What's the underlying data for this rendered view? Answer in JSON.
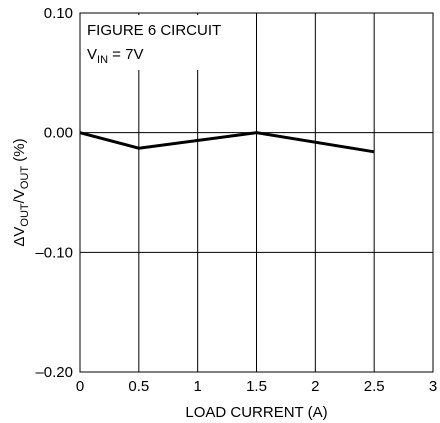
{
  "chart_data": {
    "type": "line",
    "title": "",
    "xlabel": "LOAD CURRENT (A)",
    "ylabel": {
      "prefix": "ΔV",
      "sub1": "OUT",
      "mid": "/V",
      "sub2": "OUT",
      "suffix": " (%)"
    },
    "xlim": [
      0,
      3
    ],
    "ylim": [
      -0.2,
      0.1
    ],
    "x_ticks": [
      0,
      0.5,
      1,
      1.5,
      2,
      2.5,
      3
    ],
    "x_tick_labels": [
      "0",
      "0.5",
      "1",
      "1.5",
      "2",
      "2.5",
      "3"
    ],
    "y_ticks": [
      0.1,
      0,
      -0.1,
      -0.2
    ],
    "y_tick_labels": [
      "0.10",
      "0.00",
      "–0.10",
      "–0.20"
    ],
    "grid": true,
    "annotation": {
      "line1": "FIGURE 6 CIRCUIT",
      "line2_prefix": "V",
      "line2_sub": "IN",
      "line2_suffix": " = 7V"
    },
    "series": [
      {
        "x": [
          0,
          0.5,
          1.5,
          2.5
        ],
        "y": [
          0,
          -0.013,
          0,
          -0.016
        ]
      }
    ]
  }
}
